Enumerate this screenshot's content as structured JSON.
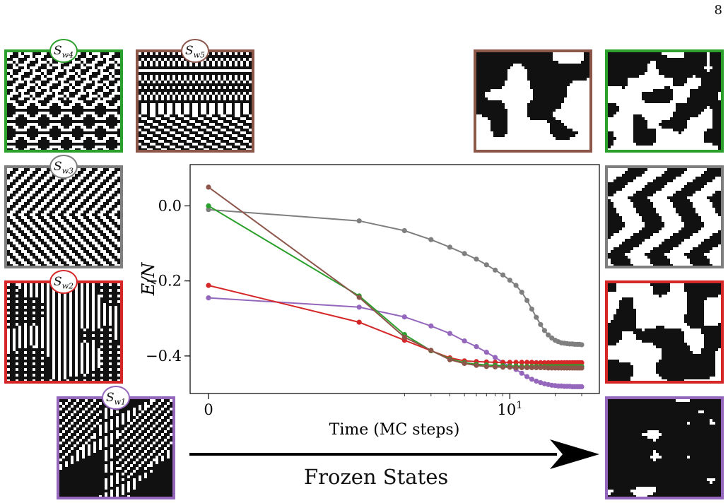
{
  "page": {
    "number": "8"
  },
  "colors": {
    "w1": "#9467bd",
    "w2": "#d62728",
    "w3": "#7f7f7f",
    "w4": "#2ca02c",
    "w5": "#8c564b"
  },
  "badges": [
    {
      "key": "w4",
      "base": "S",
      "sub": "w4"
    },
    {
      "key": "w5",
      "base": "S",
      "sub": "w5"
    },
    {
      "key": "w3",
      "base": "S",
      "sub": "w3"
    },
    {
      "key": "w2",
      "base": "S",
      "sub": "w2"
    },
    {
      "key": "w1",
      "base": "S",
      "sub": "w1"
    }
  ],
  "annotation": {
    "frozen_states": "Frozen States"
  },
  "chart_data": {
    "type": "line",
    "title": "",
    "xlabel": "Time (MC steps)",
    "ylabel": "E/N",
    "xscale": "symlog",
    "xticks": [
      "0",
      "10^1"
    ],
    "yticks": [
      "0.0",
      "−0.2",
      "−0.4"
    ],
    "ylim": [
      -0.5,
      0.11
    ],
    "x": [
      0,
      1,
      2,
      3,
      4,
      5,
      6,
      7,
      8,
      9,
      10,
      11,
      12,
      13,
      14,
      15,
      16,
      17,
      18,
      19,
      20,
      21,
      22,
      23,
      24,
      25,
      26,
      27,
      28,
      29,
      30
    ],
    "series": [
      {
        "color_key": "w3",
        "values": [
          -0.01,
          -0.04,
          -0.066,
          -0.09,
          -0.11,
          -0.127,
          -0.142,
          -0.157,
          -0.171,
          -0.184,
          -0.198,
          -0.212,
          -0.23,
          -0.252,
          -0.275,
          -0.297,
          -0.316,
          -0.332,
          -0.344,
          -0.352,
          -0.358,
          -0.362,
          -0.365,
          -0.366,
          -0.367,
          -0.368,
          -0.368,
          -0.369,
          -0.369,
          -0.369,
          -0.37
        ]
      },
      {
        "color_key": "w1",
        "values": [
          -0.245,
          -0.27,
          -0.296,
          -0.32,
          -0.34,
          -0.36,
          -0.375,
          -0.39,
          -0.404,
          -0.417,
          -0.428,
          -0.436,
          -0.446,
          -0.455,
          -0.462,
          -0.467,
          -0.471,
          -0.474,
          -0.476,
          -0.478,
          -0.479,
          -0.48,
          -0.48,
          -0.481,
          -0.481,
          -0.481,
          -0.482,
          -0.482,
          -0.482,
          -0.482,
          -0.482
        ]
      },
      {
        "color_key": "w2",
        "values": [
          -0.212,
          -0.31,
          -0.358,
          -0.386,
          -0.405,
          -0.413,
          -0.415,
          -0.416,
          -0.417,
          -0.417,
          -0.417,
          -0.417,
          -0.417,
          -0.417,
          -0.417,
          -0.418,
          -0.418,
          -0.418,
          -0.418,
          -0.418,
          -0.418,
          -0.418,
          -0.418,
          -0.418,
          -0.418,
          -0.418,
          -0.418,
          -0.418,
          -0.418,
          -0.418,
          -0.418
        ]
      },
      {
        "color_key": "w4",
        "values": [
          0.0,
          -0.24,
          -0.343,
          -0.386,
          -0.408,
          -0.418,
          -0.422,
          -0.424,
          -0.425,
          -0.426,
          -0.427,
          -0.427,
          -0.428,
          -0.428,
          -0.428,
          -0.428,
          -0.428,
          -0.428,
          -0.428,
          -0.428,
          -0.428,
          -0.428,
          -0.428,
          -0.428,
          -0.428,
          -0.428,
          -0.428,
          -0.428,
          -0.428,
          -0.428,
          -0.428
        ]
      },
      {
        "color_key": "w5",
        "values": [
          0.05,
          -0.244,
          -0.35,
          -0.385,
          -0.41,
          -0.42,
          -0.425,
          -0.428,
          -0.429,
          -0.43,
          -0.43,
          -0.431,
          -0.431,
          -0.431,
          -0.431,
          -0.431,
          -0.431,
          -0.431,
          -0.432,
          -0.432,
          -0.432,
          -0.432,
          -0.432,
          -0.432,
          -0.432,
          -0.432,
          -0.432,
          -0.432,
          -0.432,
          -0.432,
          -0.432
        ]
      }
    ]
  },
  "initial_panels": [
    {
      "key": "w4",
      "pattern": "diamond"
    },
    {
      "key": "w5",
      "pattern": "mixed"
    },
    {
      "key": "w3",
      "pattern": "diagonal"
    },
    {
      "key": "w2",
      "pattern": "checker"
    },
    {
      "key": "w1",
      "pattern": "waves"
    }
  ],
  "frozen_panels": [
    {
      "key": "w5",
      "pattern": "domains-dark-top"
    },
    {
      "key": "w4",
      "pattern": "domains-dark"
    },
    {
      "key": "w3",
      "pattern": "stripes"
    },
    {
      "key": "w2",
      "pattern": "domains-mixed"
    },
    {
      "key": "w1",
      "pattern": "mostly-dark"
    }
  ]
}
